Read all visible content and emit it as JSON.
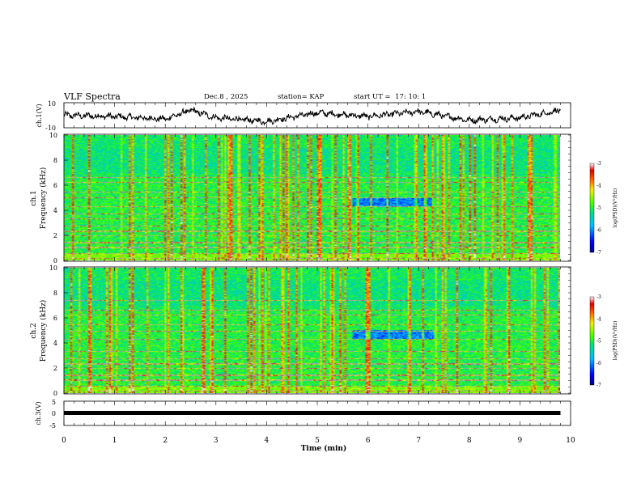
{
  "chart_data": {
    "type": "heatmap",
    "title": "VLF Spectra",
    "date": "Dec.8 , 2025",
    "station": "station= KAP",
    "start_ut": "start UT =  17: 10: 1",
    "x_axis": {
      "label": "Time (min)",
      "range": [
        0,
        10
      ],
      "ticks": [
        "0",
        "1",
        "2",
        "3",
        "4",
        "5",
        "6",
        "7",
        "8",
        "9",
        "10"
      ],
      "data_end_min": 9.8
    },
    "waveform_panel": {
      "ylabel": "ch.1(V)",
      "ylim": [
        -10,
        10
      ],
      "ytick_labels": [
        "10",
        "-10"
      ],
      "series_profile_min": [
        0,
        1,
        2,
        2.5,
        3,
        4,
        5,
        6,
        7,
        8,
        9,
        9.8
      ],
      "series_profile_v": [
        0,
        -1,
        -3,
        4,
        -2,
        -5,
        2,
        -1,
        3,
        -4,
        -2,
        4
      ]
    },
    "spectrogram_1": {
      "ylabel_channel": "ch.1",
      "ylabel": "Frequency (kHz)",
      "ylim_khz": [
        0,
        10
      ],
      "ytick_labels": [
        "0",
        "2",
        "4",
        "6",
        "8",
        "10"
      ],
      "colorbar": {
        "label": "log(PSD)(V²/Hz)",
        "range": [
          -7,
          -3
        ],
        "tick_labels": [
          "-3",
          "-4",
          "-5",
          "-6",
          "-7"
        ]
      },
      "line_emissions_khz": [
        0.15,
        0.5,
        1.0,
        1.4,
        1.95,
        2.3,
        2.75,
        3.3,
        3.7,
        4.3,
        5.0,
        5.45,
        6.25,
        6.6
      ],
      "quiet_band_khz": [
        4.3,
        5.0
      ],
      "quiet_interval_min": [
        5.7,
        7.3
      ]
    },
    "spectrogram_2": {
      "ylabel_channel": "ch.2",
      "ylabel": "Frequency (kHz)",
      "ylim_khz": [
        0,
        10
      ],
      "ytick_labels": [
        "0",
        "2",
        "4",
        "6",
        "8",
        "10"
      ],
      "colorbar": {
        "label": "log(PSD)(V²/Hz)",
        "range": [
          -7,
          -3
        ],
        "tick_labels": [
          "-3",
          "-4",
          "-5",
          "-6",
          "-7"
        ]
      },
      "line_emissions_khz": [
        0.15,
        0.5,
        1.0,
        1.4,
        1.95,
        2.3,
        2.75,
        3.3,
        4.3,
        4.95,
        5.45,
        6.25,
        6.6,
        7.4
      ],
      "quiet_band_khz": [
        4.3,
        5.0
      ],
      "quiet_interval_min": [
        5.7,
        7.3
      ]
    },
    "ch3_panel": {
      "ylabel": "ch.3(V)",
      "ylim": [
        -5,
        5
      ],
      "ytick_labels": [
        "5",
        "0",
        "-5"
      ],
      "level_v": 0
    }
  }
}
